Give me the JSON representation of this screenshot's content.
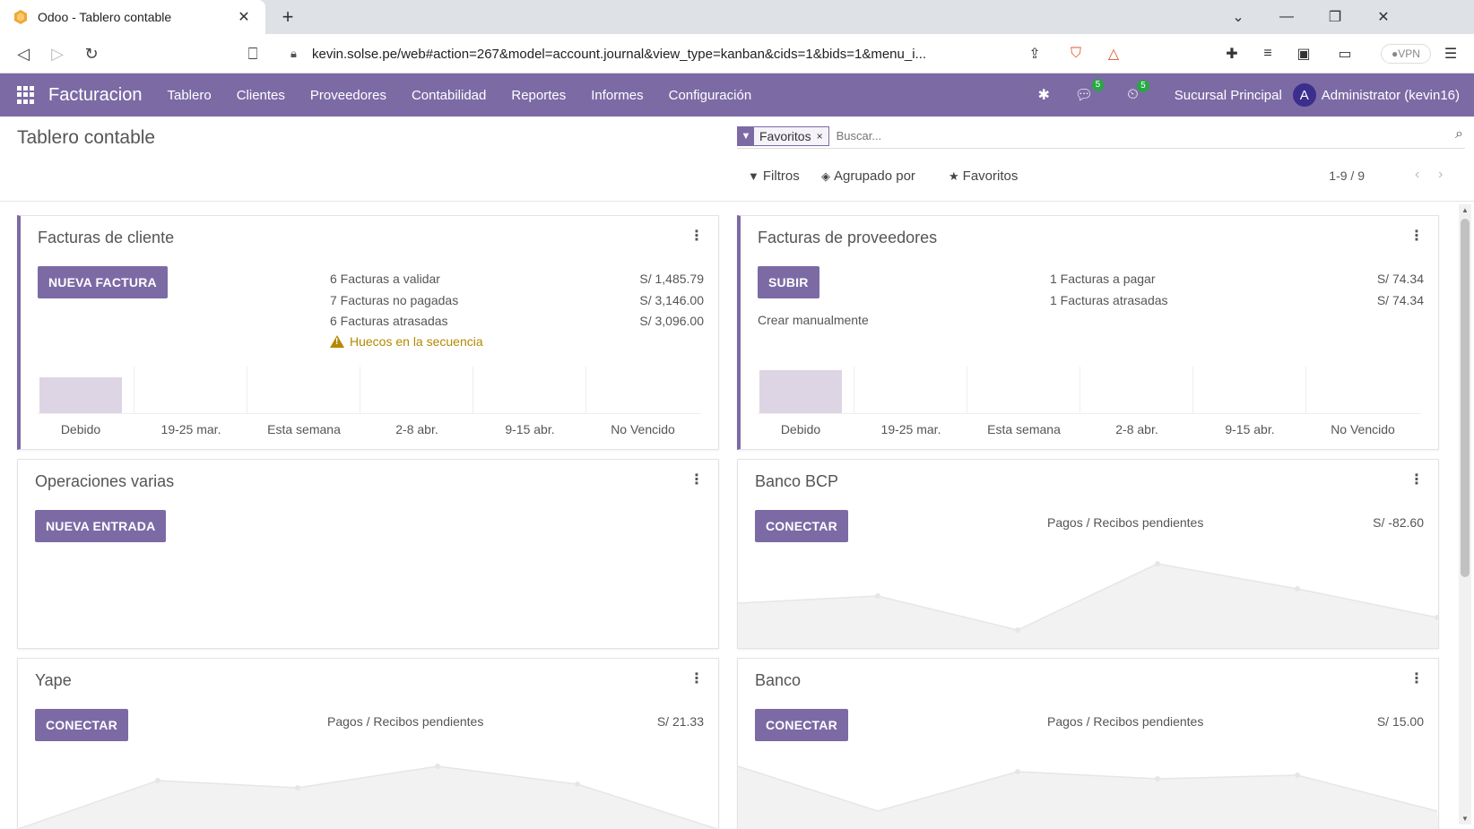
{
  "browser": {
    "tab_title": "Odoo - Tablero contable",
    "url": "kevin.solse.pe/web#action=267&model=account.journal&view_type=kanban&cids=1&bids=1&menu_i...",
    "vpn_label": "VPN"
  },
  "navbar": {
    "brand": "Facturacion",
    "menu": [
      "Tablero",
      "Clientes",
      "Proveedores",
      "Contabilidad",
      "Reportes",
      "Informes",
      "Configuración"
    ],
    "messages_count": "5",
    "activities_count": "5",
    "branch": "Sucursal Principal",
    "avatar_initial": "A",
    "user": "Administrator (kevin16)",
    "accent": "#7c6aa5"
  },
  "control_panel": {
    "title": "Tablero contable",
    "facet_label": "Favoritos",
    "facet_remove": "×",
    "search_placeholder": "Buscar...",
    "filters_label": "Filtros",
    "groupby_label": "Agrupado por",
    "favorites_label": "Favoritos",
    "pager": "1-9 / 9"
  },
  "cards": {
    "customer_invoices": {
      "title": "Facturas de cliente",
      "button": "NUEVA FACTURA",
      "stats": [
        {
          "label": "6 Facturas a validar",
          "amount": "S/ 1,485.79"
        },
        {
          "label": "7 Facturas no pagadas",
          "amount": "S/ 3,146.00"
        },
        {
          "label": "6 Facturas atrasadas",
          "amount": "S/ 3,096.00"
        }
      ],
      "warning": "Huecos en la secuencia",
      "chart_labels": [
        "Debido",
        "19-25 mar.",
        "Esta semana",
        "2-8 abr.",
        "9-15 abr.",
        "No Vencido"
      ]
    },
    "vendor_bills": {
      "title": "Facturas de proveedores",
      "button": "SUBIR",
      "manual_link": "Crear manualmente",
      "stats": [
        {
          "label": "1 Facturas a pagar",
          "amount": "S/ 74.34"
        },
        {
          "label": "1 Facturas atrasadas",
          "amount": "S/ 74.34"
        }
      ],
      "chart_labels": [
        "Debido",
        "19-25 mar.",
        "Esta semana",
        "2-8 abr.",
        "9-15 abr.",
        "No Vencido"
      ]
    },
    "misc_operations": {
      "title": "Operaciones varias",
      "button": "NUEVA ENTRADA"
    },
    "bank_bcp": {
      "title": "Banco BCP",
      "button": "CONECTAR",
      "pending_label": "Pagos / Recibos pendientes",
      "pending_amount": "S/ -82.60"
    },
    "yape": {
      "title": "Yape",
      "button": "CONECTAR",
      "pending_label": "Pagos / Recibos pendientes",
      "pending_amount": "S/ 21.33"
    },
    "bank": {
      "title": "Banco",
      "button": "CONECTAR",
      "pending_label": "Pagos / Recibos pendientes",
      "pending_amount": "S/ 15.00"
    }
  }
}
